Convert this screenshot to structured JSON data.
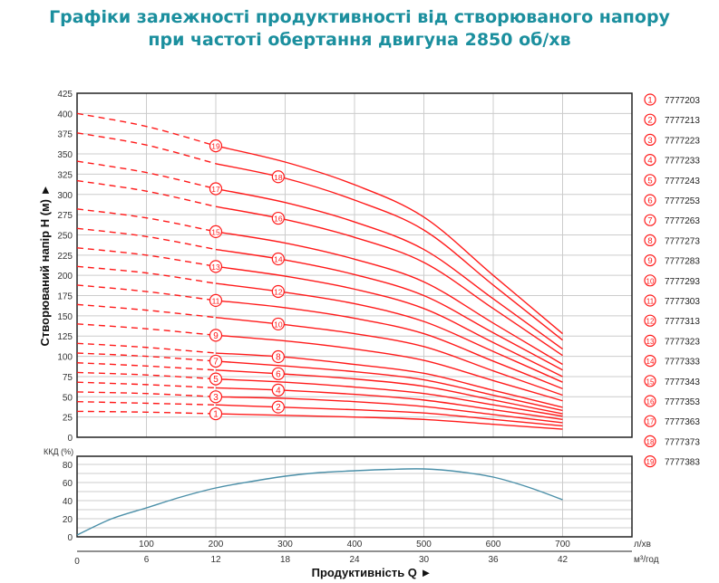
{
  "title_line1": "Графіки залежності продуктивності від створюваного напору",
  "title_line2": "при частоті обертання двигуна 2850 об/хв",
  "colors": {
    "title": "#1b8f9e",
    "head_curves": "#ff1a1a",
    "efficiency_curve": "#4a8fa8",
    "grid": "#cccccc"
  },
  "chart_data": [
    {
      "type": "line",
      "ylabel": "Створюваний напір H (м) ►",
      "ylim": [
        0,
        425
      ],
      "yticks": [
        0,
        25,
        50,
        75,
        100,
        125,
        150,
        175,
        200,
        225,
        250,
        275,
        300,
        325,
        350,
        375,
        400,
        425
      ],
      "xlim": [
        0,
        800
      ],
      "grid": true,
      "legend_placement": "right",
      "x": [
        0,
        100,
        200,
        300,
        400,
        500,
        600,
        700
      ],
      "dashed_until_x": 200,
      "series": [
        {
          "name": "7777203",
          "label": "1",
          "values": [
            32,
            31,
            29,
            27,
            25,
            22,
            16,
            10
          ]
        },
        {
          "name": "7777213",
          "label": "2",
          "values": [
            44,
            42,
            40,
            37,
            34,
            30,
            22,
            14
          ]
        },
        {
          "name": "7777223",
          "label": "3",
          "values": [
            56,
            54,
            50,
            48,
            44,
            38,
            28,
            18
          ]
        },
        {
          "name": "7777233",
          "label": "4",
          "values": [
            68,
            65,
            61,
            58,
            53,
            46,
            34,
            22
          ]
        },
        {
          "name": "7777243",
          "label": "5",
          "values": [
            80,
            77,
            72,
            68,
            62,
            54,
            40,
            26
          ]
        },
        {
          "name": "7777253",
          "label": "6",
          "values": [
            92,
            88,
            83,
            78,
            72,
            63,
            46,
            29
          ]
        },
        {
          "name": "7777263",
          "label": "7",
          "values": [
            104,
            100,
            94,
            88,
            81,
            71,
            52,
            33
          ]
        },
        {
          "name": "7777273",
          "label": "8",
          "values": [
            116,
            111,
            104,
            99,
            90,
            79,
            58,
            37
          ]
        },
        {
          "name": "7777283",
          "label": "9",
          "values": [
            140,
            134,
            126,
            119,
            109,
            95,
            70,
            45
          ]
        },
        {
          "name": "7777293",
          "label": "10",
          "values": [
            164,
            157,
            148,
            139,
            128,
            112,
            82,
            52
          ]
        },
        {
          "name": "7777303",
          "label": "11",
          "values": [
            188,
            180,
            169,
            160,
            147,
            128,
            94,
            60
          ]
        },
        {
          "name": "7777313",
          "label": "12",
          "values": [
            211,
            203,
            190,
            179,
            165,
            143,
            106,
            68
          ]
        },
        {
          "name": "7777323",
          "label": "13",
          "values": [
            234,
            225,
            211,
            199,
            183,
            159,
            117,
            75
          ]
        },
        {
          "name": "7777333",
          "label": "14",
          "values": [
            258,
            248,
            232,
            219,
            201,
            175,
            129,
            83
          ]
        },
        {
          "name": "7777343",
          "label": "15",
          "values": [
            282,
            271,
            254,
            240,
            220,
            192,
            141,
            90
          ]
        },
        {
          "name": "7777353",
          "label": "16",
          "values": [
            317,
            304,
            285,
            269,
            247,
            216,
            159,
            101
          ]
        },
        {
          "name": "7777363",
          "label": "17",
          "values": [
            341,
            327,
            307,
            290,
            266,
            232,
            171,
            109
          ]
        },
        {
          "name": "7777373",
          "label": "18",
          "values": [
            376,
            361,
            338,
            320,
            293,
            256,
            188,
            120
          ]
        },
        {
          "name": "7777383",
          "label": "19",
          "values": [
            400,
            384,
            360,
            340,
            312,
            272,
            200,
            128
          ]
        }
      ]
    },
    {
      "type": "line",
      "ylabel": "ККД (%)",
      "ylim": [
        0,
        85
      ],
      "yticks": [
        0,
        20,
        40,
        60,
        80
      ],
      "grid": true,
      "x": [
        0,
        50,
        100,
        150,
        200,
        250,
        300,
        350,
        400,
        450,
        500,
        550,
        600,
        650,
        700
      ],
      "values": [
        2,
        20,
        32,
        44,
        54,
        61,
        67,
        71,
        73,
        74.5,
        75,
        72,
        66,
        55,
        41
      ]
    }
  ],
  "x_axis": {
    "lpm_ticks": [
      "100",
      "200",
      "300",
      "400",
      "500",
      "600",
      "700"
    ],
    "lpm_unit": "л/хв",
    "m3h_ticks": [
      "0",
      "6",
      "12",
      "18",
      "24",
      "30",
      "36",
      "42"
    ],
    "m3h_unit": "м³/год",
    "label": "Продуктивність  Q ►"
  }
}
